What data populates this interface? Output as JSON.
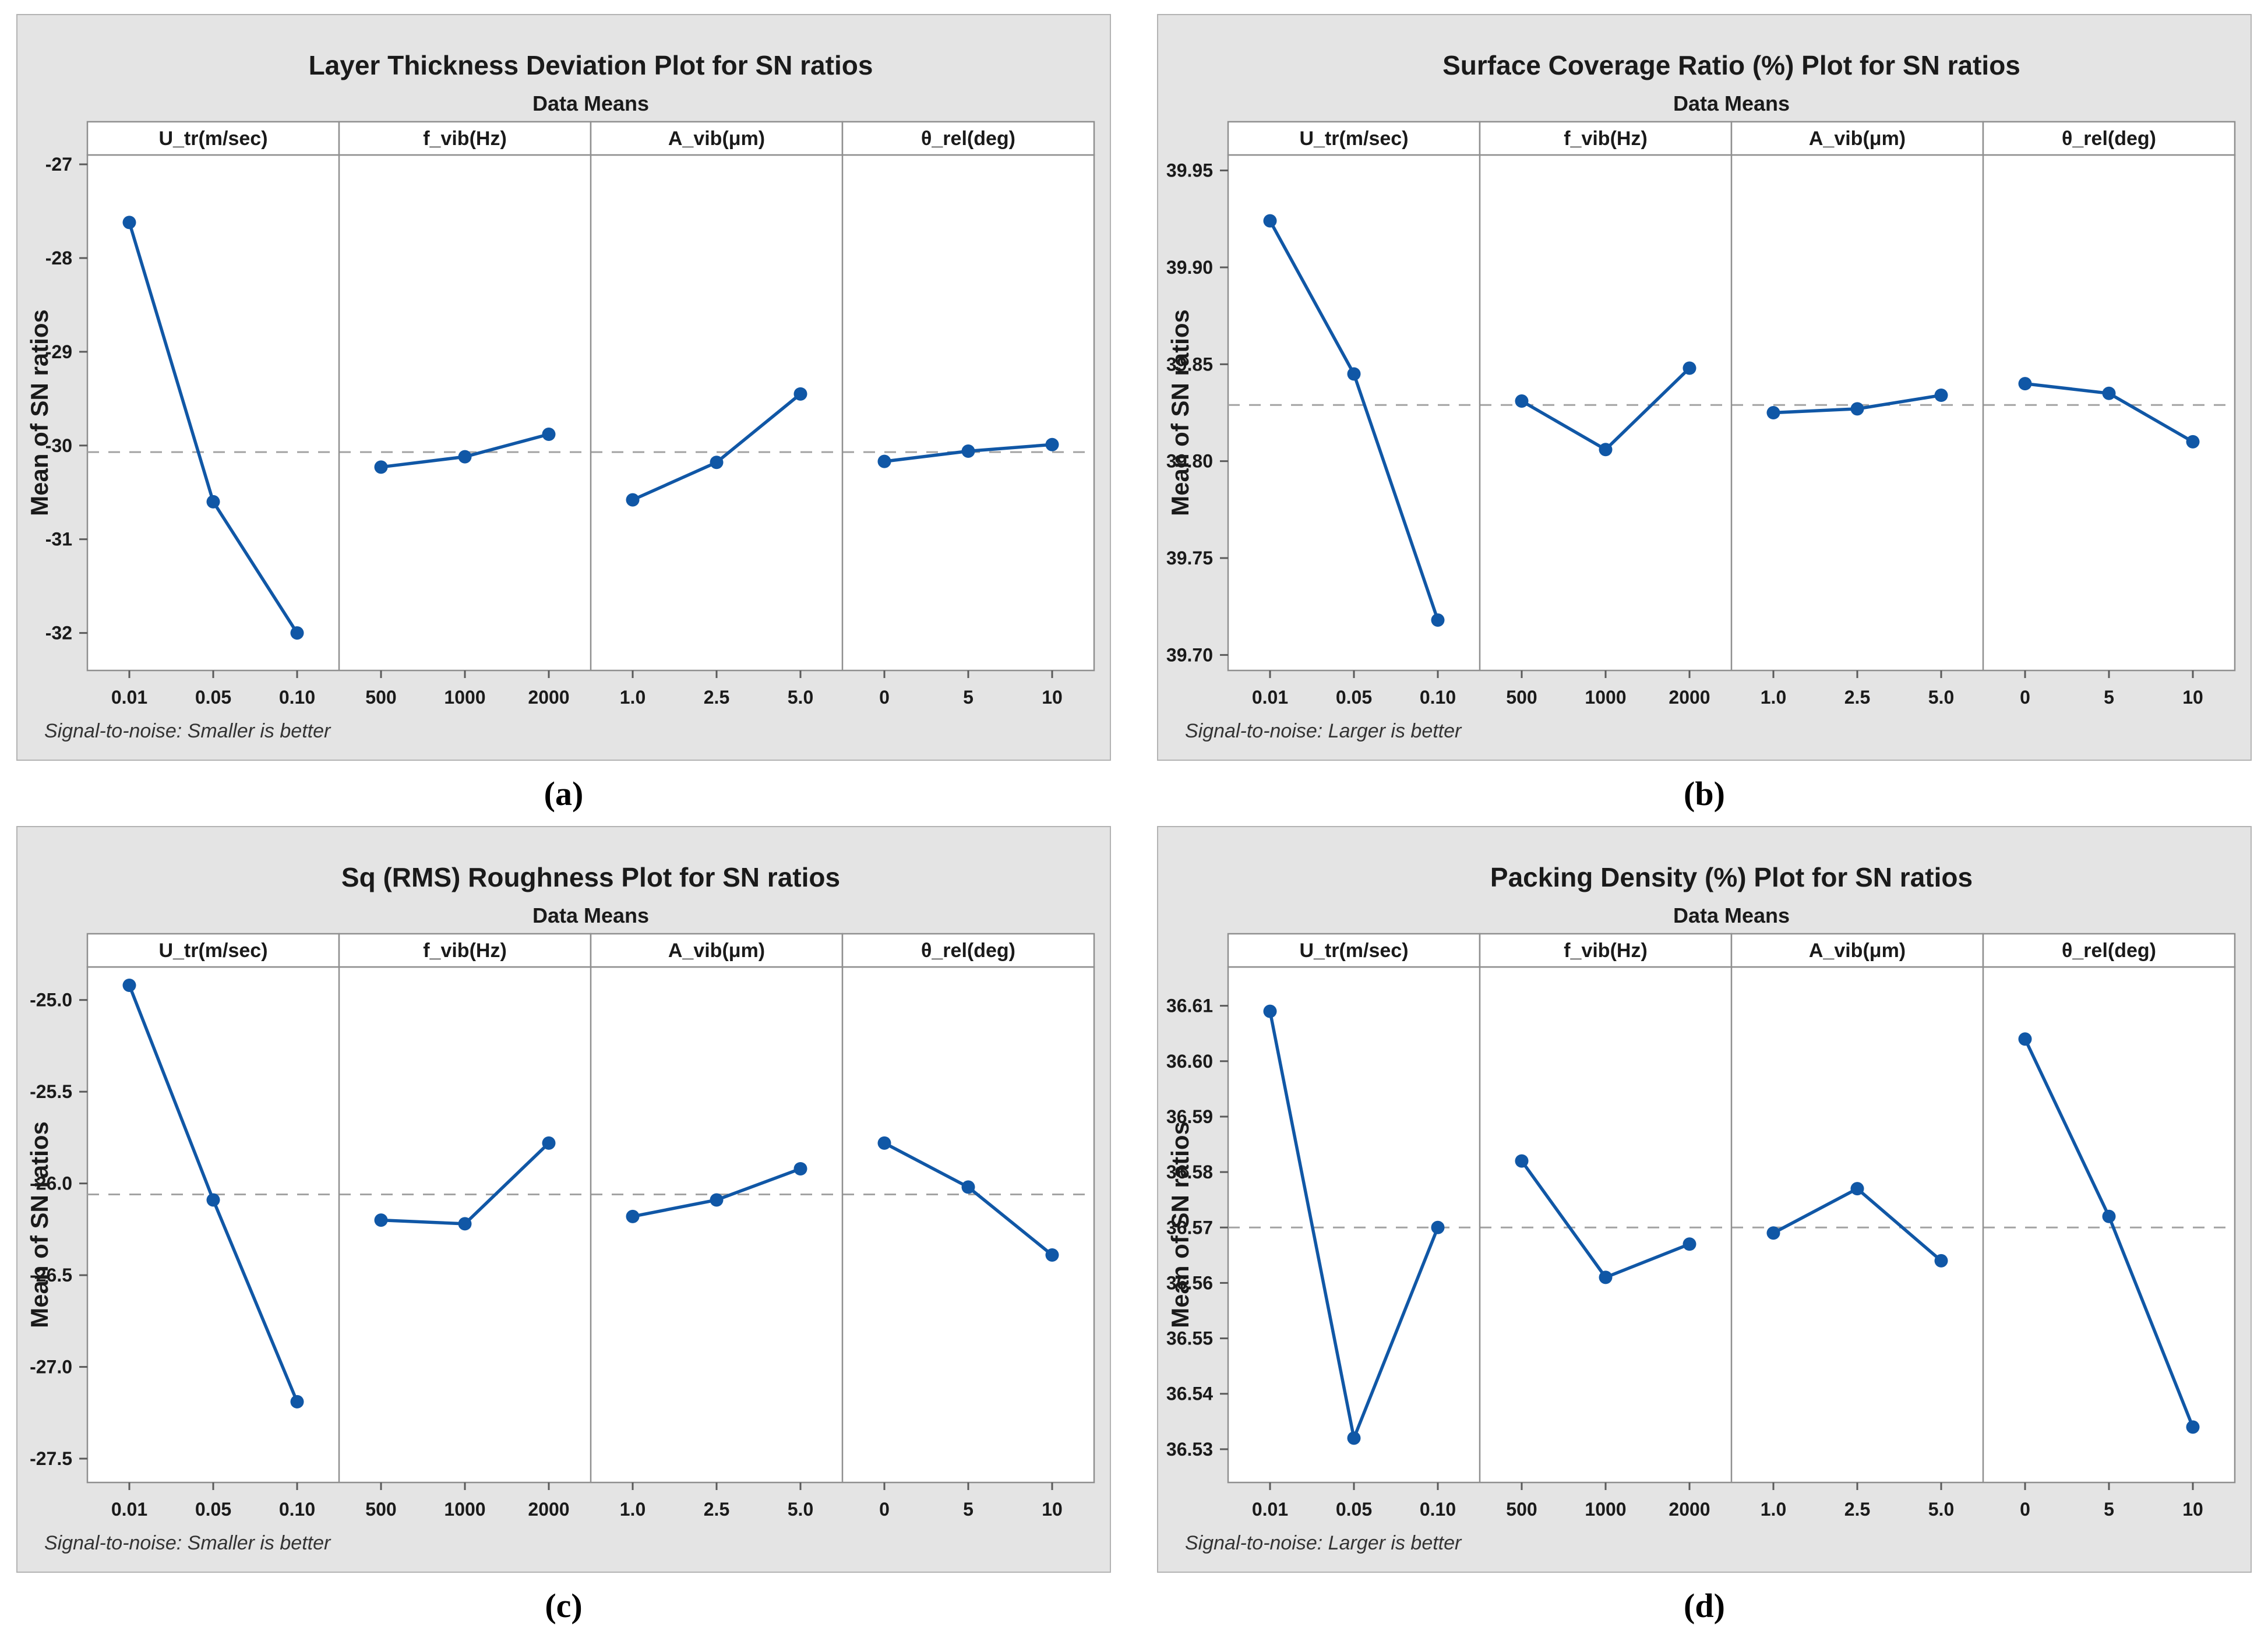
{
  "colors": {
    "card_bg": "#e4e4e4",
    "card_border": "#b3b3b3",
    "plot_bg": "#ffffff",
    "grid": "#8f8f8f",
    "tick": "#5a5a5a",
    "dash": "#a3a3a3",
    "series": "#1057a6",
    "text": "#1a1a1a"
  },
  "chart_data": [
    {
      "type": "line",
      "caption": "(a)",
      "title": "Layer Thickness Deviation Plot for SN ratios",
      "subtitle": "Data Means",
      "ylabel": "Mean of SN ratios",
      "footer": "Signal-to-noise: Smaller is better",
      "ylim": [
        -32.4,
        -26.9
      ],
      "mean": -30.07,
      "ytick_values": [
        -27,
        -28,
        -29,
        -30,
        -31,
        -32
      ],
      "ytick_labels": [
        "-27",
        "-28",
        "-29",
        "-30",
        "-31",
        "-32"
      ],
      "legend": "none",
      "grid_on": false,
      "panels": [
        {
          "label": "U_tr(m/sec)",
          "ticks": [
            "0.01",
            "0.05",
            "0.10"
          ],
          "values": [
            -27.62,
            -30.6,
            -32.0
          ]
        },
        {
          "label": "f_vib(Hz)",
          "ticks": [
            "500",
            "1000",
            "2000"
          ],
          "values": [
            -30.23,
            -30.12,
            -29.88
          ]
        },
        {
          "label": "A_vib(μm)",
          "ticks": [
            "1.0",
            "2.5",
            "5.0"
          ],
          "values": [
            -30.58,
            -30.18,
            -29.45
          ]
        },
        {
          "label": "θ_rel(deg)",
          "ticks": [
            "0",
            "5",
            "10"
          ],
          "values": [
            -30.17,
            -30.06,
            -29.99
          ]
        }
      ]
    },
    {
      "type": "line",
      "caption": "(b)",
      "title": "Surface Coverage Ratio (%) Plot for SN ratios",
      "subtitle": "Data Means",
      "ylabel": "Mean of SN ratios",
      "footer": "Signal-to-noise: Larger is better",
      "ylim": [
        39.692,
        39.958
      ],
      "mean": 39.829,
      "ytick_values": [
        39.95,
        39.9,
        39.85,
        39.8,
        39.75,
        39.7
      ],
      "ytick_labels": [
        "39.95",
        "39.90",
        "39.85",
        "39.80",
        "39.75",
        "39.70"
      ],
      "legend": "none",
      "grid_on": false,
      "panels": [
        {
          "label": "U_tr(m/sec)",
          "ticks": [
            "0.01",
            "0.05",
            "0.10"
          ],
          "values": [
            39.924,
            39.845,
            39.718
          ]
        },
        {
          "label": "f_vib(Hz)",
          "ticks": [
            "500",
            "1000",
            "2000"
          ],
          "values": [
            39.831,
            39.806,
            39.848
          ]
        },
        {
          "label": "A_vib(μm)",
          "ticks": [
            "1.0",
            "2.5",
            "5.0"
          ],
          "values": [
            39.825,
            39.827,
            39.834
          ]
        },
        {
          "label": "θ_rel(deg)",
          "ticks": [
            "0",
            "5",
            "10"
          ],
          "values": [
            39.84,
            39.835,
            39.81
          ]
        }
      ]
    },
    {
      "type": "line",
      "caption": "(c)",
      "title": "Sq (RMS) Roughness Plot for SN ratios",
      "subtitle": "Data Means",
      "ylabel": "Mean of SN ratios",
      "footer": "Signal-to-noise: Smaller is better",
      "ylim": [
        -27.63,
        -24.82
      ],
      "mean": -26.06,
      "ytick_values": [
        -25.0,
        -25.5,
        -26.0,
        -26.5,
        -27.0,
        -27.5
      ],
      "ytick_labels": [
        "-25.0",
        "-25.5",
        "-26.0",
        "-26.5",
        "-27.0",
        "-27.5"
      ],
      "legend": "none",
      "grid_on": false,
      "panels": [
        {
          "label": "U_tr(m/sec)",
          "ticks": [
            "0.01",
            "0.05",
            "0.10"
          ],
          "values": [
            -24.92,
            -26.09,
            -27.19
          ]
        },
        {
          "label": "f_vib(Hz)",
          "ticks": [
            "500",
            "1000",
            "2000"
          ],
          "values": [
            -26.2,
            -26.22,
            -25.78
          ]
        },
        {
          "label": "A_vib(μm)",
          "ticks": [
            "1.0",
            "2.5",
            "5.0"
          ],
          "values": [
            -26.18,
            -26.09,
            -25.92
          ]
        },
        {
          "label": "θ_rel(deg)",
          "ticks": [
            "0",
            "5",
            "10"
          ],
          "values": [
            -25.78,
            -26.02,
            -26.39
          ]
        }
      ]
    },
    {
      "type": "line",
      "caption": "(d)",
      "title": "Packing Density (%) Plot for SN ratios",
      "subtitle": "Data Means",
      "ylabel": "Mean of SN ratios",
      "footer": "Signal-to-noise: Larger is better",
      "ylim": [
        36.524,
        36.617
      ],
      "mean": 36.57,
      "ytick_values": [
        36.61,
        36.6,
        36.59,
        36.58,
        36.57,
        36.56,
        36.55,
        36.54,
        36.53
      ],
      "ytick_labels": [
        "36.61",
        "36.60",
        "36.59",
        "36.58",
        "36.57",
        "36.56",
        "36.55",
        "36.54",
        "36.53"
      ],
      "legend": "none",
      "grid_on": false,
      "panels": [
        {
          "label": "U_tr(m/sec)",
          "ticks": [
            "0.01",
            "0.05",
            "0.10"
          ],
          "values": [
            36.609,
            36.532,
            36.57
          ]
        },
        {
          "label": "f_vib(Hz)",
          "ticks": [
            "500",
            "1000",
            "2000"
          ],
          "values": [
            36.582,
            36.561,
            36.567
          ]
        },
        {
          "label": "A_vib(μm)",
          "ticks": [
            "1.0",
            "2.5",
            "5.0"
          ],
          "values": [
            36.569,
            36.577,
            36.564
          ]
        },
        {
          "label": "θ_rel(deg)",
          "ticks": [
            "0",
            "5",
            "10"
          ],
          "values": [
            36.604,
            36.572,
            36.534
          ]
        }
      ]
    }
  ]
}
